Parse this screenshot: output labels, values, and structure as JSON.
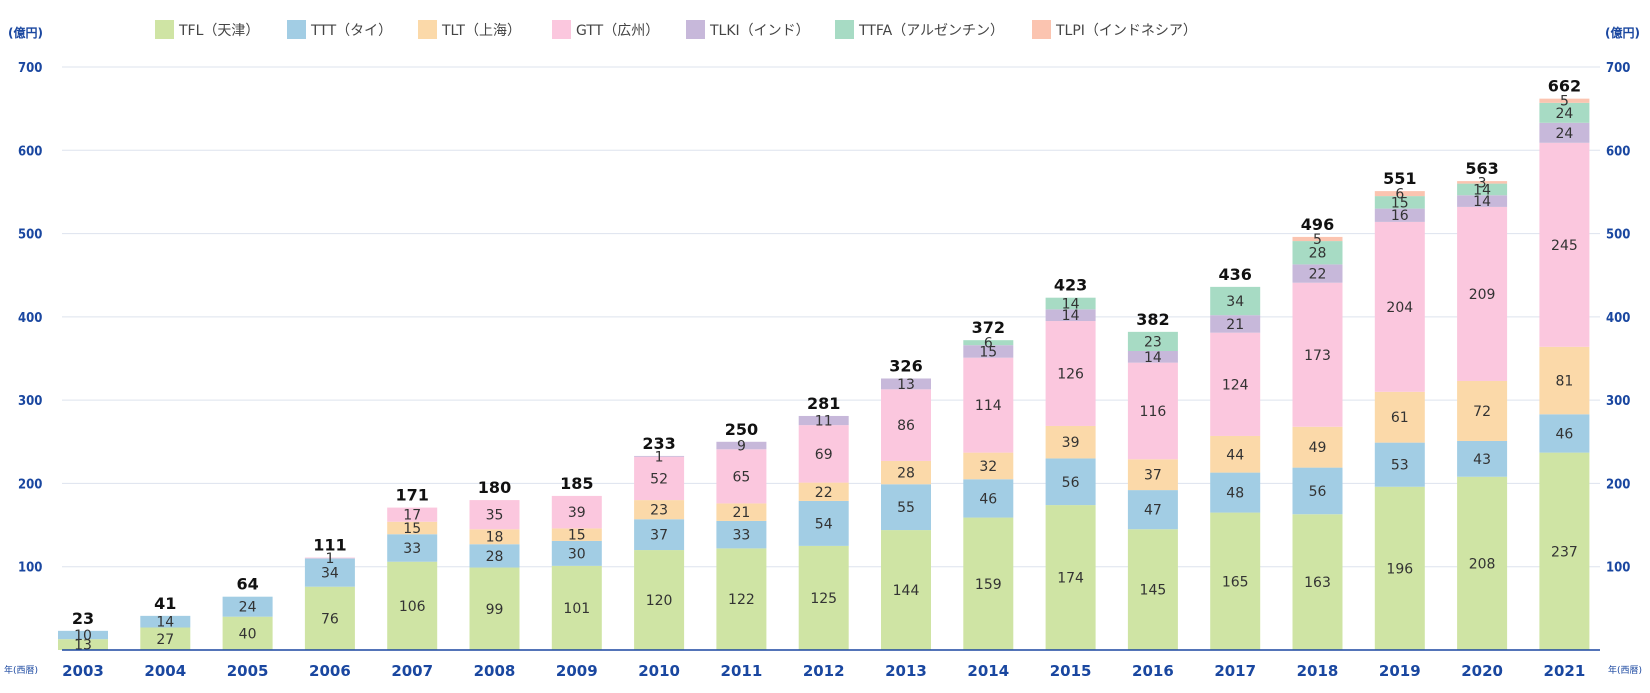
{
  "chart_data": {
    "type": "bar",
    "stacked": true,
    "y_unit_left": "(億円)",
    "y_unit_right": "(億円)",
    "x_unit_left": "年(西暦)",
    "x_unit_right": "年(西暦)",
    "ylim": [
      0,
      700
    ],
    "yticks": [
      "100",
      "200",
      "300",
      "400",
      "500",
      "600",
      "700"
    ],
    "grid": true,
    "legend_position": "top",
    "categories": [
      "2003",
      "2004",
      "2005",
      "2006",
      "2007",
      "2008",
      "2009",
      "2010",
      "2011",
      "2012",
      "2013",
      "2014",
      "2015",
      "2016",
      "2017",
      "2018",
      "2019",
      "2020",
      "2021"
    ],
    "series": [
      {
        "name": "TFL（天津）",
        "color": "#cfe4a4",
        "values": [
          13,
          27,
          40,
          76,
          106,
          99,
          101,
          120,
          122,
          125,
          144,
          159,
          174,
          145,
          165,
          163,
          196,
          208,
          237
        ]
      },
      {
        "name": "TTT（タイ）",
        "color": "#a2cde4",
        "values": [
          10,
          14,
          24,
          34,
          33,
          28,
          30,
          37,
          33,
          54,
          55,
          46,
          56,
          47,
          48,
          56,
          53,
          43,
          46
        ]
      },
      {
        "name": "TLT（上海）",
        "color": "#fbd9a9",
        "values": [
          0,
          0,
          0,
          0,
          15,
          18,
          15,
          23,
          21,
          22,
          28,
          32,
          39,
          37,
          44,
          49,
          61,
          72,
          81
        ]
      },
      {
        "name": "GTT（広州）",
        "color": "#fbc7de",
        "values": [
          0,
          0,
          0,
          1,
          17,
          35,
          39,
          52,
          65,
          69,
          86,
          114,
          126,
          116,
          124,
          173,
          204,
          209,
          245
        ]
      },
      {
        "name": "TLKI（インド）",
        "color": "#c7b8da",
        "values": [
          0,
          0,
          0,
          0,
          0,
          0,
          0,
          1,
          9,
          11,
          13,
          15,
          14,
          14,
          21,
          22,
          16,
          14,
          24
        ]
      },
      {
        "name": "TTFA（アルゼンチン）",
        "color": "#a7dbc4",
        "values": [
          0,
          0,
          0,
          0,
          0,
          0,
          0,
          0,
          0,
          0,
          0,
          6,
          14,
          23,
          34,
          28,
          15,
          14,
          24
        ]
      },
      {
        "name": "TLPI（インドネシア）",
        "color": "#fbc4b0",
        "values": [
          0,
          0,
          0,
          0,
          0,
          0,
          0,
          0,
          0,
          0,
          0,
          0,
          0,
          0,
          0,
          5,
          6,
          3,
          5
        ]
      }
    ],
    "totals": [
      23,
      41,
      64,
      111,
      171,
      180,
      185,
      233,
      250,
      281,
      326,
      372,
      423,
      382,
      436,
      496,
      551,
      563,
      662
    ]
  }
}
